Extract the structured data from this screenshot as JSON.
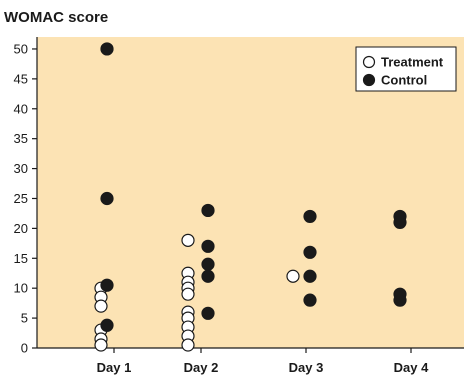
{
  "chart_data": {
    "type": "scatter",
    "title": "WOMAC score",
    "xlabel": "",
    "ylabel": "",
    "categories": [
      "Day 1",
      "Day 2",
      "Day 3",
      "Day 4"
    ],
    "ylim": [
      0,
      52
    ],
    "yticks": [
      0,
      5,
      10,
      15,
      20,
      25,
      30,
      35,
      40,
      45,
      50
    ],
    "grid": false,
    "legend_position": "top-right",
    "background_color": "#FCE3B4",
    "series": [
      {
        "name": "Treatment",
        "marker": "open-circle",
        "points": [
          {
            "x": "Day 1",
            "y": 10
          },
          {
            "x": "Day 1",
            "y": 8.5
          },
          {
            "x": "Day 1",
            "y": 7
          },
          {
            "x": "Day 1",
            "y": 3
          },
          {
            "x": "Day 1",
            "y": 1.5
          },
          {
            "x": "Day 1",
            "y": 0.5
          },
          {
            "x": "Day 2",
            "y": 18
          },
          {
            "x": "Day 2",
            "y": 12.5
          },
          {
            "x": "Day 2",
            "y": 11
          },
          {
            "x": "Day 2",
            "y": 10
          },
          {
            "x": "Day 2",
            "y": 9
          },
          {
            "x": "Day 2",
            "y": 6
          },
          {
            "x": "Day 2",
            "y": 5
          },
          {
            "x": "Day 2",
            "y": 3.5
          },
          {
            "x": "Day 2",
            "y": 2
          },
          {
            "x": "Day 2",
            "y": 0.5
          },
          {
            "x": "Day 3",
            "y": 12
          }
        ]
      },
      {
        "name": "Control",
        "marker": "filled-circle",
        "points": [
          {
            "x": "Day 1",
            "y": 50
          },
          {
            "x": "Day 1",
            "y": 25
          },
          {
            "x": "Day 1",
            "y": 10.5
          },
          {
            "x": "Day 1",
            "y": 3.8
          },
          {
            "x": "Day 2",
            "y": 23
          },
          {
            "x": "Day 2",
            "y": 17
          },
          {
            "x": "Day 2",
            "y": 14
          },
          {
            "x": "Day 2",
            "y": 12
          },
          {
            "x": "Day 2",
            "y": 5.8
          },
          {
            "x": "Day 3",
            "y": 22
          },
          {
            "x": "Day 3",
            "y": 16
          },
          {
            "x": "Day 3",
            "y": 12
          },
          {
            "x": "Day 3",
            "y": 8
          },
          {
            "x": "Day 4",
            "y": 22
          },
          {
            "x": "Day 4",
            "y": 21
          },
          {
            "x": "Day 4",
            "y": 9
          },
          {
            "x": "Day 4",
            "y": 8
          }
        ]
      }
    ]
  }
}
